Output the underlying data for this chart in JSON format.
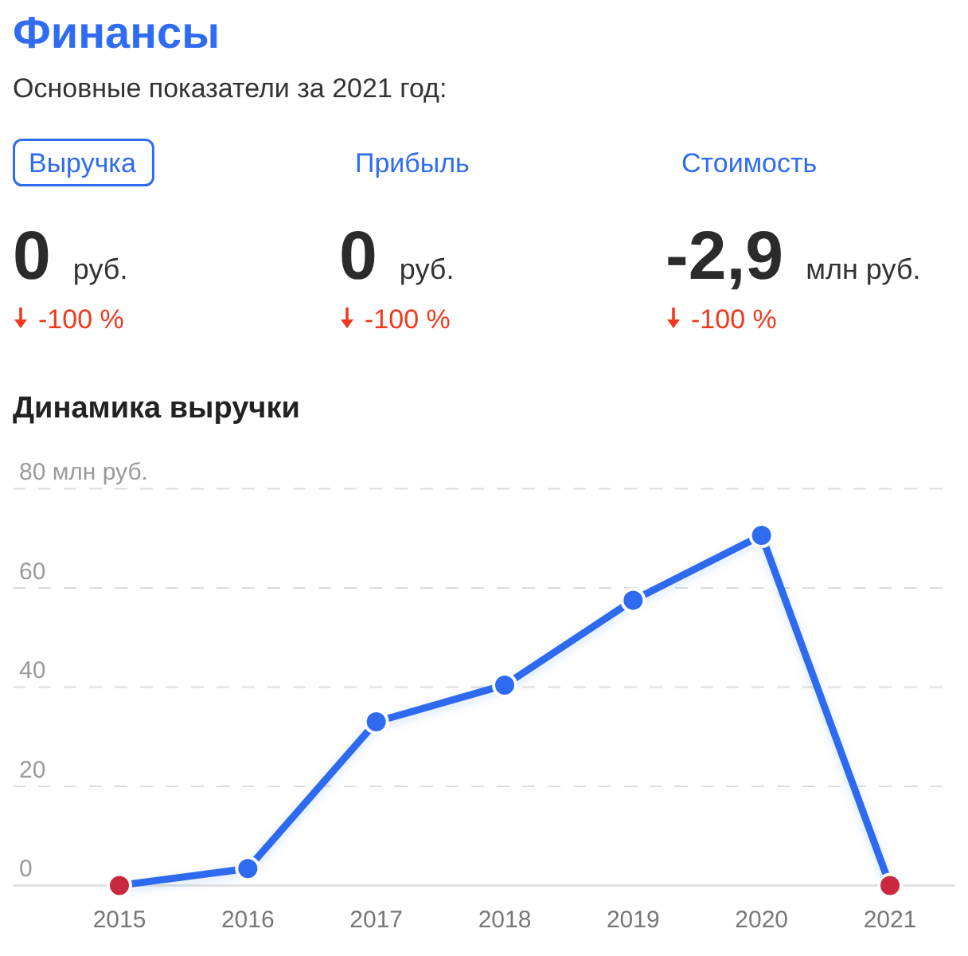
{
  "chart_data": [
    {
      "type": "other",
      "title": "Финансы",
      "subtitle": "Основные показатели за 2021 год:",
      "categories": [
        "Выручка",
        "Прибыль",
        "Стоимость"
      ],
      "series": [
        {
          "values": [
            0,
            0,
            -2.9
          ],
          "value_labels": [
            "0",
            "0",
            "-2,9"
          ]
        },
        {
          "color": "#f03a1f",
          "values": [
            -100,
            -100,
            -100
          ],
          "value_labels": [
            "-100 %",
            "-100 %",
            "-100 %"
          ]
        }
      ],
      "annotations": [
        "руб.",
        "руб.",
        "млн руб."
      ]
    },
    {
      "type": "line",
      "title": "Динамика выручки",
      "categories": [
        "2015",
        "2016",
        "2017",
        "2018",
        "2019",
        "2020",
        "2021"
      ],
      "series": [
        {
          "color": "#2f6bf0",
          "colors": [
            "#c9283e",
            "#2f6bf0",
            "#2f6bf0",
            "#2f6bf0",
            "#2f6bf0",
            "#2f6bf0",
            "#c9283e"
          ],
          "values": [
            0,
            3.4,
            33,
            40.4,
            57.5,
            70.6,
            0
          ]
        }
      ],
      "ylim": [
        0,
        80
      ],
      "yticks": [
        0,
        20,
        40,
        60,
        {
          "value": 80,
          "label": "80 млн руб."
        }
      ],
      "grid": "y",
      "marker": "circle"
    }
  ]
}
